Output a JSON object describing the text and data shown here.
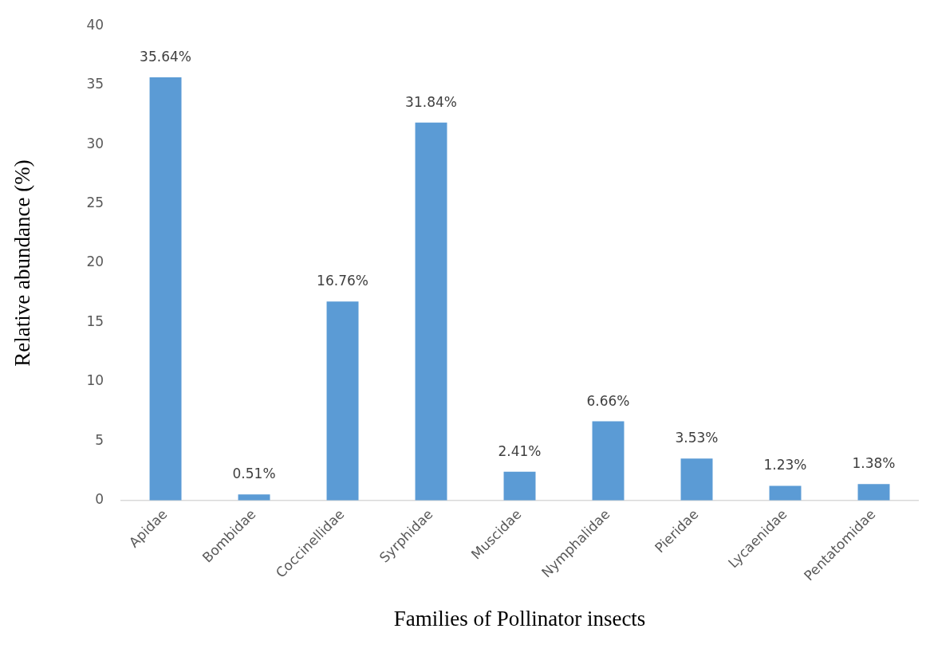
{
  "chart_data": {
    "type": "bar",
    "xlabel": "Families of Pollinator insects",
    "ylabel": "Relative abundance (%)",
    "categories": [
      "Apidae",
      "Bombidae",
      "Coccinellidae",
      "Syrphidae",
      "Muscidae",
      "Nymphalidae",
      "Pieridae",
      "Lycaenidae",
      "Pentatomidae"
    ],
    "values": [
      35.64,
      0.51,
      16.76,
      31.84,
      2.41,
      6.66,
      3.53,
      1.23,
      1.38
    ],
    "value_labels": [
      "35.64%",
      "0.51%",
      "16.76%",
      "31.84%",
      "2.41%",
      "6.66%",
      "3.53%",
      "1.23%",
      "1.38%"
    ],
    "color": "#5b9bd5",
    "ylim": [
      0,
      40
    ],
    "yticks": [
      0,
      5,
      10,
      15,
      20,
      25,
      30,
      35,
      40
    ],
    "grid": false,
    "legend": false
  }
}
